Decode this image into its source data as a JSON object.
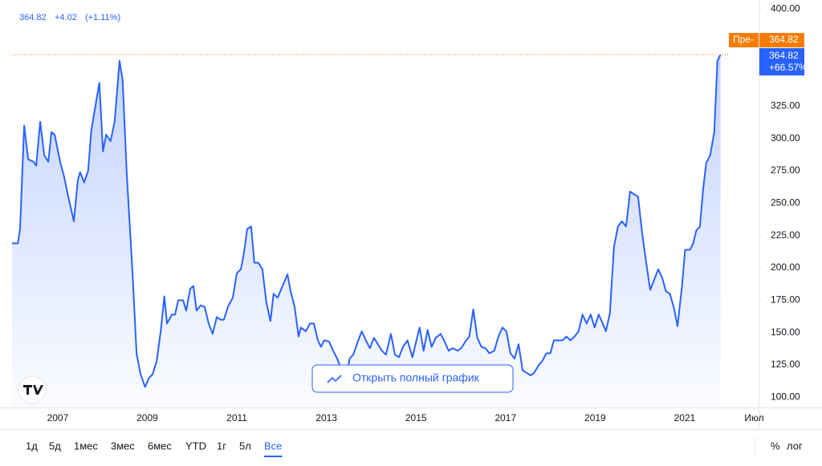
{
  "header": {
    "price": "364.82",
    "change": "+4.02",
    "change_pct": "(+1.11%)"
  },
  "chart_data": {
    "type": "line",
    "color": "#2962ff",
    "x": [
      2005.98,
      2006.11,
      2006.16,
      2006.25,
      2006.34,
      2006.46,
      2006.52,
      2006.61,
      2006.7,
      2006.79,
      2006.86,
      2006.93,
      2007.06,
      2007.14,
      2007.23,
      2007.36,
      2007.45,
      2007.5,
      2007.59,
      2007.68,
      2007.75,
      2007.83,
      2007.93,
      2008.01,
      2008.08,
      2008.18,
      2008.27,
      2008.38,
      2008.45,
      2008.54,
      2008.67,
      2008.76,
      2008.85,
      2008.95,
      2009.04,
      2009.12,
      2009.21,
      2009.3,
      2009.38,
      2009.44,
      2009.55,
      2009.62,
      2009.69,
      2009.8,
      2009.87,
      2009.96,
      2010.03,
      2010.1,
      2010.19,
      2010.28,
      2010.37,
      2010.46,
      2010.55,
      2010.64,
      2010.71,
      2010.8,
      2010.91,
      2011.0,
      2011.09,
      2011.16,
      2011.23,
      2011.32,
      2011.39,
      2011.48,
      2011.57,
      2011.66,
      2011.75,
      2011.82,
      2011.91,
      2012.02,
      2012.13,
      2012.2,
      2012.29,
      2012.38,
      2012.43,
      2012.54,
      2012.63,
      2012.72,
      2012.81,
      2012.88,
      2012.95,
      2013.06,
      2013.15,
      2013.24,
      2013.35,
      2013.43,
      2013.52,
      2013.6,
      2013.7,
      2013.79,
      2013.88,
      2013.97,
      2014.06,
      2014.15,
      2014.24,
      2014.33,
      2014.44,
      2014.53,
      2014.62,
      2014.71,
      2014.81,
      2014.92,
      2015.01,
      2015.08,
      2015.17,
      2015.26,
      2015.35,
      2015.44,
      2015.55,
      2015.64,
      2015.73,
      2015.82,
      2015.93,
      2016.01,
      2016.1,
      2016.19,
      2016.28,
      2016.37,
      2016.46,
      2016.55,
      2016.64,
      2016.75,
      2016.84,
      2016.93,
      2017.02,
      2017.11,
      2017.2,
      2017.29,
      2017.38,
      2017.47,
      2017.56,
      2017.64,
      2017.74,
      2017.82,
      2017.91,
      2018.0,
      2018.08,
      2018.18,
      2018.27,
      2018.36,
      2018.45,
      2018.54,
      2018.63,
      2018.72,
      2018.81,
      2018.9,
      2018.99,
      2019.08,
      2019.17,
      2019.24,
      2019.33,
      2019.42,
      2019.51,
      2019.6,
      2019.69,
      2019.78,
      2019.87,
      2019.96,
      2020.05,
      2020.14,
      2020.23,
      2020.32,
      2020.41,
      2020.5,
      2020.58,
      2020.67,
      2020.76,
      2020.84,
      2020.94,
      2021.01,
      2021.12,
      2021.19,
      2021.26,
      2021.34,
      2021.41,
      2021.48,
      2021.57,
      2021.66,
      2021.73,
      2021.8
    ],
    "values": [
      219,
      219,
      230,
      310,
      284,
      282,
      279,
      313,
      287,
      282,
      305,
      303,
      281,
      271,
      256,
      236,
      268,
      274,
      266,
      275,
      306,
      323,
      343,
      290,
      303,
      298,
      313,
      360,
      345,
      274,
      196,
      134,
      118,
      108,
      115,
      118,
      128,
      151,
      178,
      157,
      164,
      164,
      175,
      175,
      167,
      184,
      186,
      167,
      171,
      170,
      157,
      149,
      162,
      160,
      160,
      170,
      177,
      196,
      199,
      212,
      230,
      232,
      204,
      204,
      199,
      173,
      159,
      180,
      177,
      186,
      195,
      182,
      170,
      147,
      154,
      151,
      157,
      157,
      144,
      139,
      144,
      143,
      136,
      130,
      120,
      113,
      130,
      133,
      143,
      151,
      144,
      138,
      146,
      141,
      136,
      133,
      149,
      133,
      131,
      139,
      144,
      131,
      144,
      154,
      136,
      152,
      139,
      146,
      149,
      143,
      136,
      138,
      136,
      138,
      143,
      147,
      168,
      146,
      139,
      138,
      134,
      136,
      147,
      154,
      151,
      134,
      130,
      141,
      121,
      119,
      117,
      119,
      125,
      128,
      134,
      134,
      144,
      144,
      144,
      147,
      144,
      147,
      151,
      164,
      157,
      164,
      154,
      164,
      157,
      151,
      165,
      216,
      232,
      236,
      232,
      259,
      257,
      255,
      227,
      204,
      183,
      191,
      199,
      192,
      182,
      180,
      169,
      155,
      186,
      214,
      214,
      219,
      229,
      232,
      260,
      281,
      287,
      305,
      360,
      364.82
    ],
    "xlim": [
      2005.98,
      2022.65
    ],
    "xticks": [
      2007,
      2009,
      2011,
      2013,
      2015,
      2017,
      2019,
      2021,
      {
        "value": 2022.55,
        "label": "Июл"
      }
    ],
    "ylim": [
      92.2,
      403.9
    ],
    "yticks": [
      {
        "value": 100,
        "label": "100.00"
      },
      {
        "value": 125,
        "label": "125.00"
      },
      {
        "value": 150,
        "label": "150.00"
      },
      {
        "value": 175,
        "label": "175.00"
      },
      {
        "value": 200,
        "label": "200.00"
      },
      {
        "value": 225,
        "label": "225.00"
      },
      {
        "value": 250,
        "label": "250.00"
      },
      {
        "value": 275,
        "label": "275.00"
      },
      {
        "value": 300,
        "label": "300.00"
      },
      {
        "value": 325,
        "label": "325.00"
      },
      {
        "value": 400,
        "label": "400.00"
      }
    ],
    "last_value": 364.82,
    "last_label": "364.82",
    "last_change": "+66.57%",
    "pre_label": "Пре-",
    "pre_price": "364.82",
    "open_button": "Открыть полный график"
  },
  "toolbar": {
    "ranges": [
      "1д",
      "5д",
      "1мес",
      "3мес",
      "6мес",
      "YTD",
      "1г",
      "5л",
      "Все"
    ],
    "selected_range": "Все",
    "percent": "%",
    "log": "лог"
  }
}
